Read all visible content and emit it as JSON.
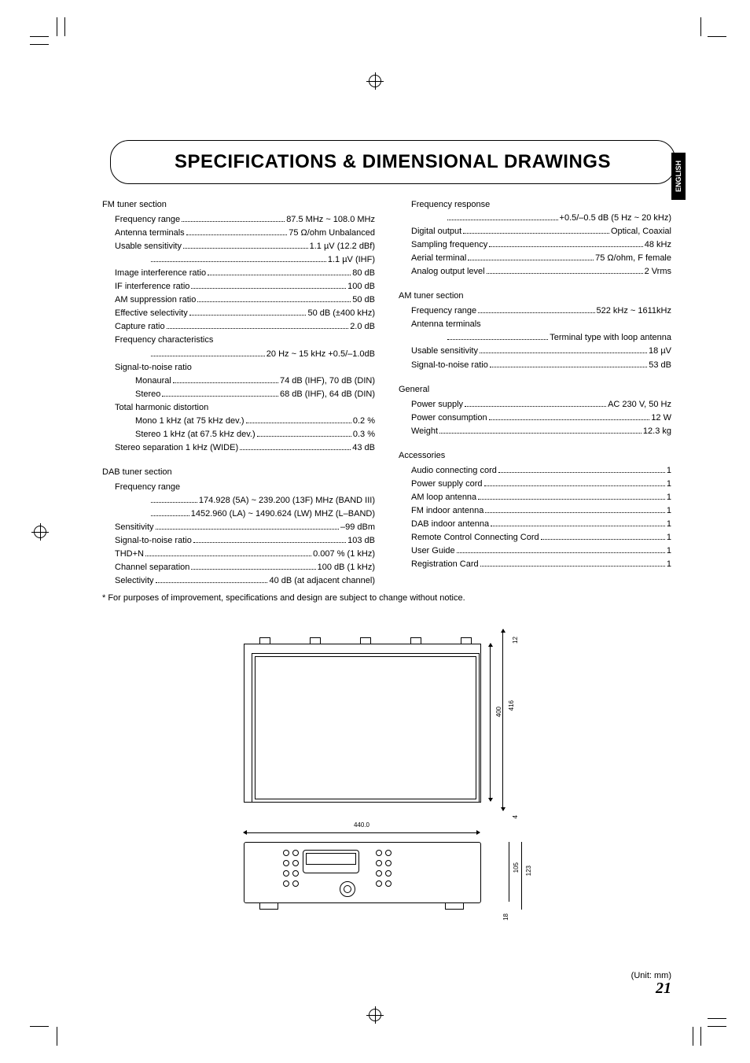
{
  "title": "SPECIFICATIONS & DIMENSIONAL DRAWINGS",
  "side_tab": "ENGLISH",
  "footnote": "* For purposes of improvement, specifications and design are subject to change without notice.",
  "unit_label": "(Unit: mm)",
  "page_number": "21",
  "dimensions": {
    "width": "440.0",
    "height_body": "400",
    "height_total": "416",
    "top_tab": "12",
    "rear_offset": "4",
    "front_height": "105",
    "front_total_height": "123",
    "foot_height": "18"
  },
  "left_col": [
    {
      "title": "FM tuner section",
      "rows": [
        {
          "label": "Frequency range",
          "value": "87.5 MHz ~ 108.0 MHz",
          "indent": 1
        },
        {
          "label": "Antenna terminals",
          "value": "75 Ω/ohm Unbalanced",
          "indent": 1
        },
        {
          "label": "Usable sensitivity",
          "value": "1.1 µV (12.2 dBf)",
          "indent": 1
        },
        {
          "value_only": "1.1 µV (IHF)"
        },
        {
          "label": "Image interference ratio",
          "value": "80 dB",
          "indent": 1
        },
        {
          "label": "IF interference ratio",
          "value": "100 dB",
          "indent": 1
        },
        {
          "label": "AM suppression ratio",
          "value": "50 dB",
          "indent": 1
        },
        {
          "label": "Effective selectivity",
          "value": "50 dB (±400 kHz)",
          "indent": 1
        },
        {
          "label": "Capture ratio",
          "value": "2.0 dB",
          "indent": 1
        },
        {
          "label_only": "Frequency characteristics",
          "indent": 1
        },
        {
          "value_only": "20 Hz ~ 15 kHz +0.5/–1.0dB"
        },
        {
          "label_only": "Signal-to-noise ratio",
          "indent": 1
        },
        {
          "label": "Monaural",
          "value": "74 dB (IHF), 70 dB (DIN)",
          "indent": 2
        },
        {
          "label": "Stereo",
          "value": "68 dB (IHF), 64 dB (DIN)",
          "indent": 2
        },
        {
          "label_only": "Total harmonic distortion",
          "indent": 1
        },
        {
          "label": "Mono 1 kHz (at 75 kHz dev.)",
          "value": "0.2 %",
          "indent": 2
        },
        {
          "label": "Stereo 1 kHz (at 67.5 kHz dev.)",
          "value": "0.3 %",
          "indent": 2
        },
        {
          "label": "Stereo separation 1 kHz (WIDE)",
          "value": "43 dB",
          "indent": 1
        }
      ]
    },
    {
      "title": "DAB tuner section",
      "rows": [
        {
          "label_only": "Frequency range",
          "indent": 1
        },
        {
          "value_only": "174.928 (5A) ~ 239.200 (13F) MHz (BAND III)"
        },
        {
          "value_only": "1452.960 (LA) ~ 1490.624 (LW) MHZ (L–BAND)"
        },
        {
          "label": "Sensitivity",
          "value": "–99 dBm",
          "indent": 1
        },
        {
          "label": "Signal-to-noise ratio",
          "value": "103 dB",
          "indent": 1
        },
        {
          "label": "THD+N",
          "value": "0.007 % (1 kHz)",
          "indent": 1
        },
        {
          "label": "Channel separation",
          "value": "100 dB (1 kHz)",
          "indent": 1
        },
        {
          "label": "Selectivity",
          "value": "40 dB (at adjacent channel)",
          "indent": 1
        }
      ]
    }
  ],
  "right_col": [
    {
      "rows": [
        {
          "label_only": "Frequency response",
          "indent": 1
        },
        {
          "value_only": "+0.5/–0.5 dB (5 Hz ~ 20 kHz)"
        },
        {
          "label": "Digital output",
          "value": "Optical, Coaxial",
          "indent": 1
        },
        {
          "label": "Sampling frequency",
          "value": "48 kHz",
          "indent": 1
        },
        {
          "label": "Aerial terminal",
          "value": "75 Ω/ohm, F female",
          "indent": 1
        },
        {
          "label": "Analog output level",
          "value": "2 Vrms",
          "indent": 1
        }
      ]
    },
    {
      "title": "AM tuner section",
      "rows": [
        {
          "label": "Frequency range",
          "value": "522 kHz ~ 1611kHz",
          "indent": 1
        },
        {
          "label_only": "Antenna terminals",
          "indent": 1
        },
        {
          "value_only": "Terminal type with loop antenna"
        },
        {
          "label": "Usable sensitivity",
          "value": "18 µV",
          "indent": 1
        },
        {
          "label": "Signal-to-noise ratio",
          "value": "53 dB",
          "indent": 1
        }
      ]
    },
    {
      "title": "General",
      "rows": [
        {
          "label": "Power supply",
          "value": "AC 230 V,  50 Hz",
          "indent": 1
        },
        {
          "label": "Power consumption",
          "value": "12 W",
          "indent": 1
        },
        {
          "label": "Weight",
          "value": "12.3 kg",
          "indent": 1
        }
      ]
    },
    {
      "title": "Accessories",
      "rows": [
        {
          "label": "Audio connecting cord",
          "value": "1",
          "indent": 1
        },
        {
          "label": "Power supply cord",
          "value": "1",
          "indent": 1
        },
        {
          "label": "AM loop antenna",
          "value": "1",
          "indent": 1
        },
        {
          "label": "FM indoor antenna",
          "value": "1",
          "indent": 1
        },
        {
          "label": "DAB indoor antenna",
          "value": "1",
          "indent": 1
        },
        {
          "label": "Remote Control Connecting Cord",
          "value": "1",
          "indent": 1
        },
        {
          "label": "User Guide",
          "value": "1",
          "indent": 1
        },
        {
          "label": "Registration Card",
          "value": "1",
          "indent": 1
        }
      ]
    }
  ]
}
